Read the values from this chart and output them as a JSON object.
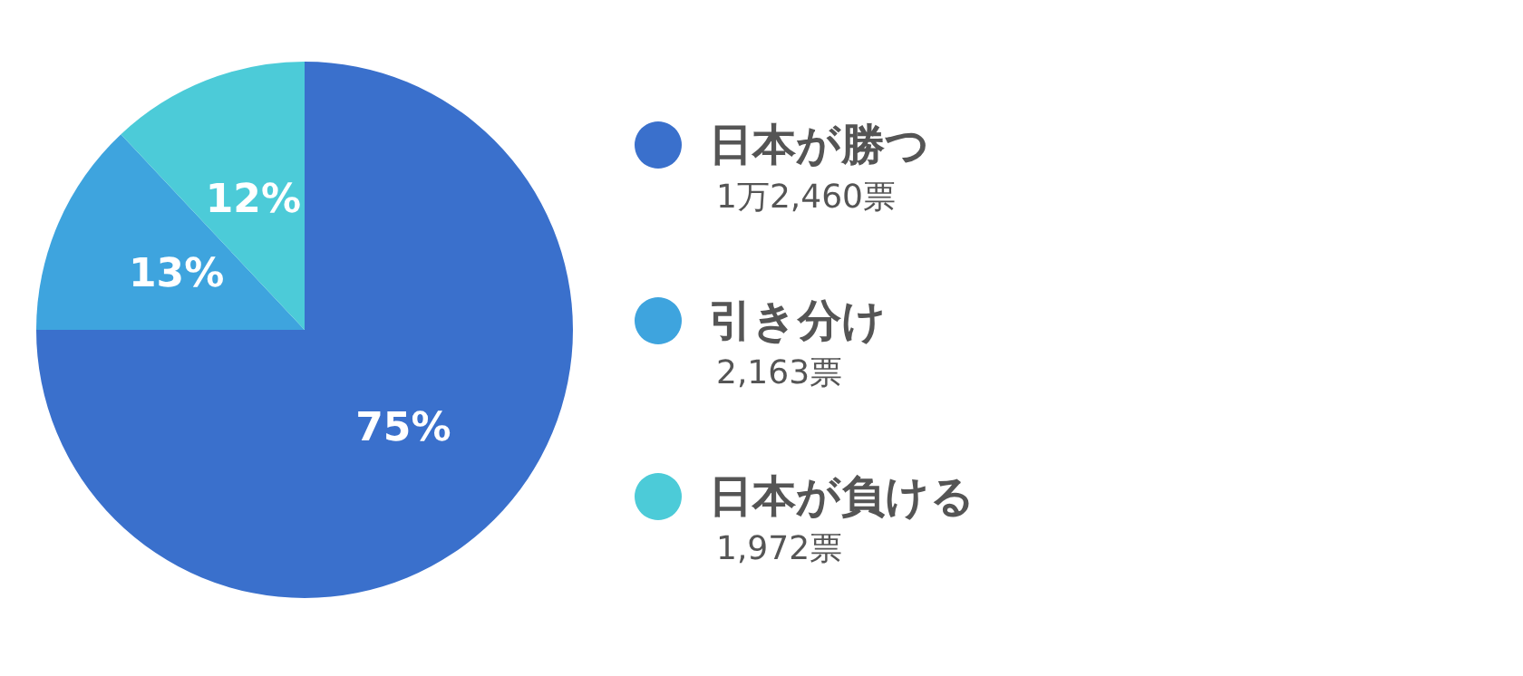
{
  "chart_data": {
    "type": "pie",
    "categories": [
      "日本が勝つ",
      "引き分け",
      "日本が負ける"
    ],
    "values": [
      75,
      13,
      12
    ],
    "colors": [
      "#3a70cc",
      "#3ea4de",
      "#4ccbd8"
    ],
    "value_labels": [
      "75%",
      "13%",
      "12%"
    ],
    "annotations": [
      "1万2,460票",
      "2,163票",
      "1,972票"
    ],
    "legend": "right"
  }
}
